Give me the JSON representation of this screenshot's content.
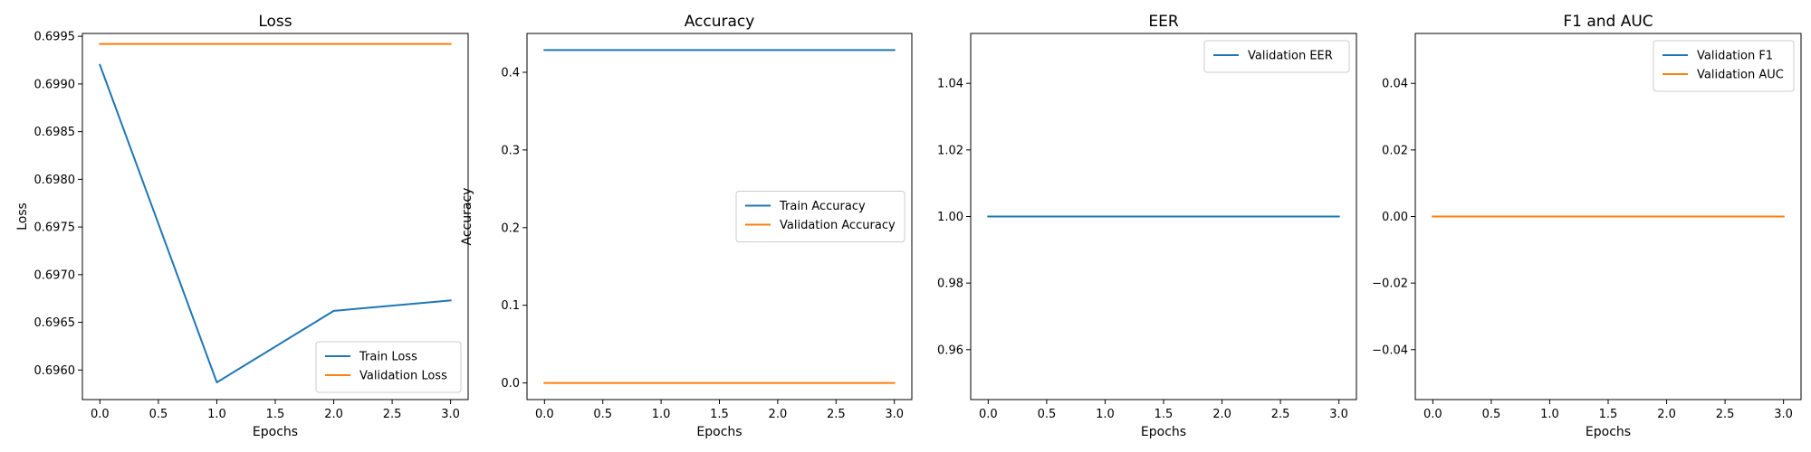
{
  "chart_data": [
    {
      "type": "line",
      "title": "Loss",
      "xlabel": "Epochs",
      "ylabel": "Loss",
      "xlim": [
        -0.15,
        3.15
      ],
      "ylim": [
        0.69569,
        0.69953
      ],
      "xticks": [
        0,
        0.5,
        1,
        1.5,
        2,
        2.5,
        3
      ],
      "xtick_labels": [
        "0.0",
        "0.5",
        "1.0",
        "1.5",
        "2.0",
        "2.5",
        "3.0"
      ],
      "yticks": [
        0.696,
        0.6965,
        0.697,
        0.6975,
        0.698,
        0.6985,
        0.699,
        0.6995
      ],
      "ytick_labels": [
        "0.6960",
        "0.6965",
        "0.6970",
        "0.6975",
        "0.6980",
        "0.6985",
        "0.6990",
        "0.6995"
      ],
      "legend_position": "lower-right",
      "series": [
        {
          "name": "Train Loss",
          "color": "#1f77b4",
          "x": [
            0,
            1,
            2,
            3
          ],
          "values": [
            0.6992,
            0.69587,
            0.69662,
            0.69673
          ]
        },
        {
          "name": "Validation Loss",
          "color": "#ff7f0e",
          "x": [
            0,
            1,
            2,
            3
          ],
          "values": [
            0.69942,
            0.69942,
            0.69942,
            0.69942
          ]
        }
      ]
    },
    {
      "type": "line",
      "title": "Accuracy",
      "xlabel": "Epochs",
      "ylabel": "Accuracy",
      "xlim": [
        -0.15,
        3.15
      ],
      "ylim": [
        -0.0214,
        0.45
      ],
      "xticks": [
        0,
        0.5,
        1,
        1.5,
        2,
        2.5,
        3
      ],
      "xtick_labels": [
        "0.0",
        "0.5",
        "1.0",
        "1.5",
        "2.0",
        "2.5",
        "3.0"
      ],
      "yticks": [
        0,
        0.1,
        0.2,
        0.3,
        0.4
      ],
      "ytick_labels": [
        "0.0",
        "0.1",
        "0.2",
        "0.3",
        "0.4"
      ],
      "legend_position": "center-right",
      "series": [
        {
          "name": "Train Accuracy",
          "color": "#1f77b4",
          "x": [
            0,
            1,
            2,
            3
          ],
          "values": [
            0.4286,
            0.4286,
            0.4286,
            0.4286
          ]
        },
        {
          "name": "Validation Accuracy",
          "color": "#ff7f0e",
          "x": [
            0,
            1,
            2,
            3
          ],
          "values": [
            0,
            0,
            0,
            0
          ]
        }
      ]
    },
    {
      "type": "line",
      "title": "EER",
      "xlabel": "Epochs",
      "ylabel": "",
      "xlim": [
        -0.15,
        3.15
      ],
      "ylim": [
        0.945,
        1.055
      ],
      "xticks": [
        0,
        0.5,
        1,
        1.5,
        2,
        2.5,
        3
      ],
      "xtick_labels": [
        "0.0",
        "0.5",
        "1.0",
        "1.5",
        "2.0",
        "2.5",
        "3.0"
      ],
      "yticks": [
        0.96,
        0.98,
        1.0,
        1.02,
        1.04
      ],
      "ytick_labels": [
        "0.96",
        "0.98",
        "1.00",
        "1.02",
        "1.04"
      ],
      "legend_position": "upper-right",
      "series": [
        {
          "name": "Validation EER",
          "color": "#1f77b4",
          "x": [
            0,
            1,
            2,
            3
          ],
          "values": [
            1.0,
            1.0,
            1.0,
            1.0
          ]
        }
      ]
    },
    {
      "type": "line",
      "title": "F1 and AUC",
      "xlabel": "Epochs",
      "ylabel": "",
      "xlim": [
        -0.15,
        3.15
      ],
      "ylim": [
        -0.055,
        0.055
      ],
      "xticks": [
        0,
        0.5,
        1,
        1.5,
        2,
        2.5,
        3
      ],
      "xtick_labels": [
        "0.0",
        "0.5",
        "1.0",
        "1.5",
        "2.0",
        "2.5",
        "3.0"
      ],
      "yticks": [
        -0.04,
        -0.02,
        0.0,
        0.02,
        0.04
      ],
      "ytick_labels": [
        "−0.04",
        "−0.02",
        "0.00",
        "0.02",
        "0.04"
      ],
      "legend_position": "upper-right",
      "series": [
        {
          "name": "Validation F1",
          "color": "#1f77b4",
          "x": [
            0,
            1,
            2,
            3
          ],
          "values": [
            0,
            0,
            0,
            0
          ]
        },
        {
          "name": "Validation AUC",
          "color": "#ff7f0e",
          "x": [
            0,
            1,
            2,
            3
          ],
          "values": [
            0,
            0,
            0,
            0
          ]
        }
      ]
    }
  ]
}
